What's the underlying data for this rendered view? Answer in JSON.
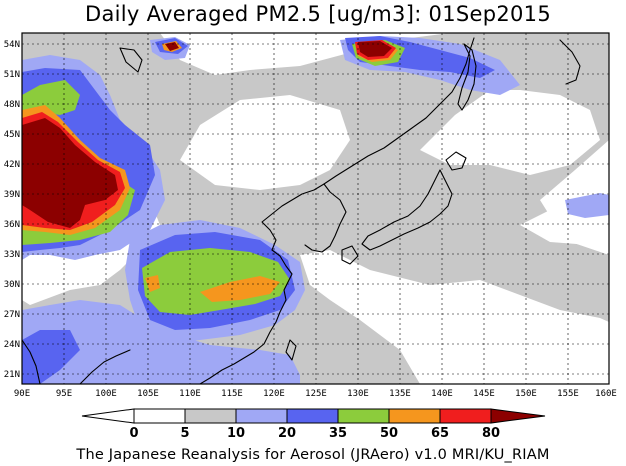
{
  "title": "Daily Averaged PM2.5 [ug/m3]: 01Sep2015",
  "footer": "The Japanese Reanalysis for Aerosol (JRAero) v1.0 MRI/KU_RIAM",
  "map": {
    "lon_range": [
      90,
      160
    ],
    "lat_range": [
      20,
      55
    ],
    "lon_ticks": [
      "90E",
      "95E",
      "100E",
      "105E",
      "110E",
      "115E",
      "120E",
      "125E",
      "130E",
      "135E",
      "140E",
      "145E",
      "150E",
      "155E",
      "160E"
    ],
    "lat_ticks": [
      "21N",
      "24N",
      "27N",
      "30N",
      "33N",
      "36N",
      "39N",
      "42N",
      "45N",
      "48N",
      "51N",
      "54N"
    ],
    "grid": true
  },
  "colorbar": {
    "labels": [
      "0",
      "5",
      "10",
      "20",
      "35",
      "50",
      "65",
      "80"
    ],
    "colors": [
      "#ffffff",
      "#c8c8c8",
      "#a0a8f5",
      "#5864f0",
      "#8ccc3c",
      "#f5961e",
      "#f01e1e",
      "#8c0000"
    ]
  }
}
